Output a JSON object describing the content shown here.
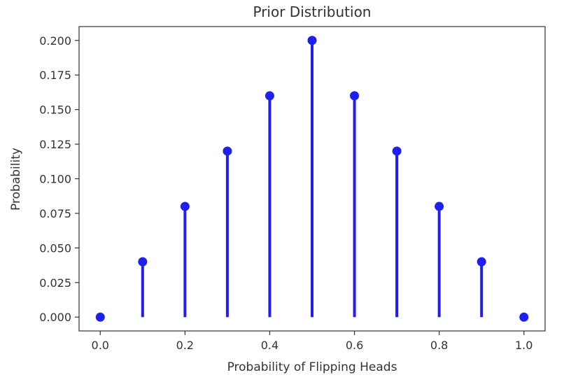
{
  "chart_data": {
    "type": "stem",
    "title": "Prior Distribution",
    "xlabel": "Probability of Flipping Heads",
    "ylabel": "Probability",
    "x": [
      0.0,
      0.1,
      0.2,
      0.3,
      0.4,
      0.5,
      0.6,
      0.7,
      0.8,
      0.9,
      1.0
    ],
    "y": [
      0.0,
      0.04,
      0.08,
      0.12,
      0.16,
      0.2,
      0.16,
      0.12,
      0.08,
      0.04,
      0.0
    ],
    "xlim": [
      -0.05,
      1.05
    ],
    "ylim": [
      -0.01,
      0.21
    ],
    "xticks": [
      "0.0",
      "0.2",
      "0.4",
      "0.6",
      "0.8",
      "1.0"
    ],
    "yticks": [
      "0.000",
      "0.025",
      "0.050",
      "0.075",
      "0.100",
      "0.125",
      "0.150",
      "0.175",
      "0.200"
    ],
    "grid": false,
    "color": "#1f1fef"
  }
}
